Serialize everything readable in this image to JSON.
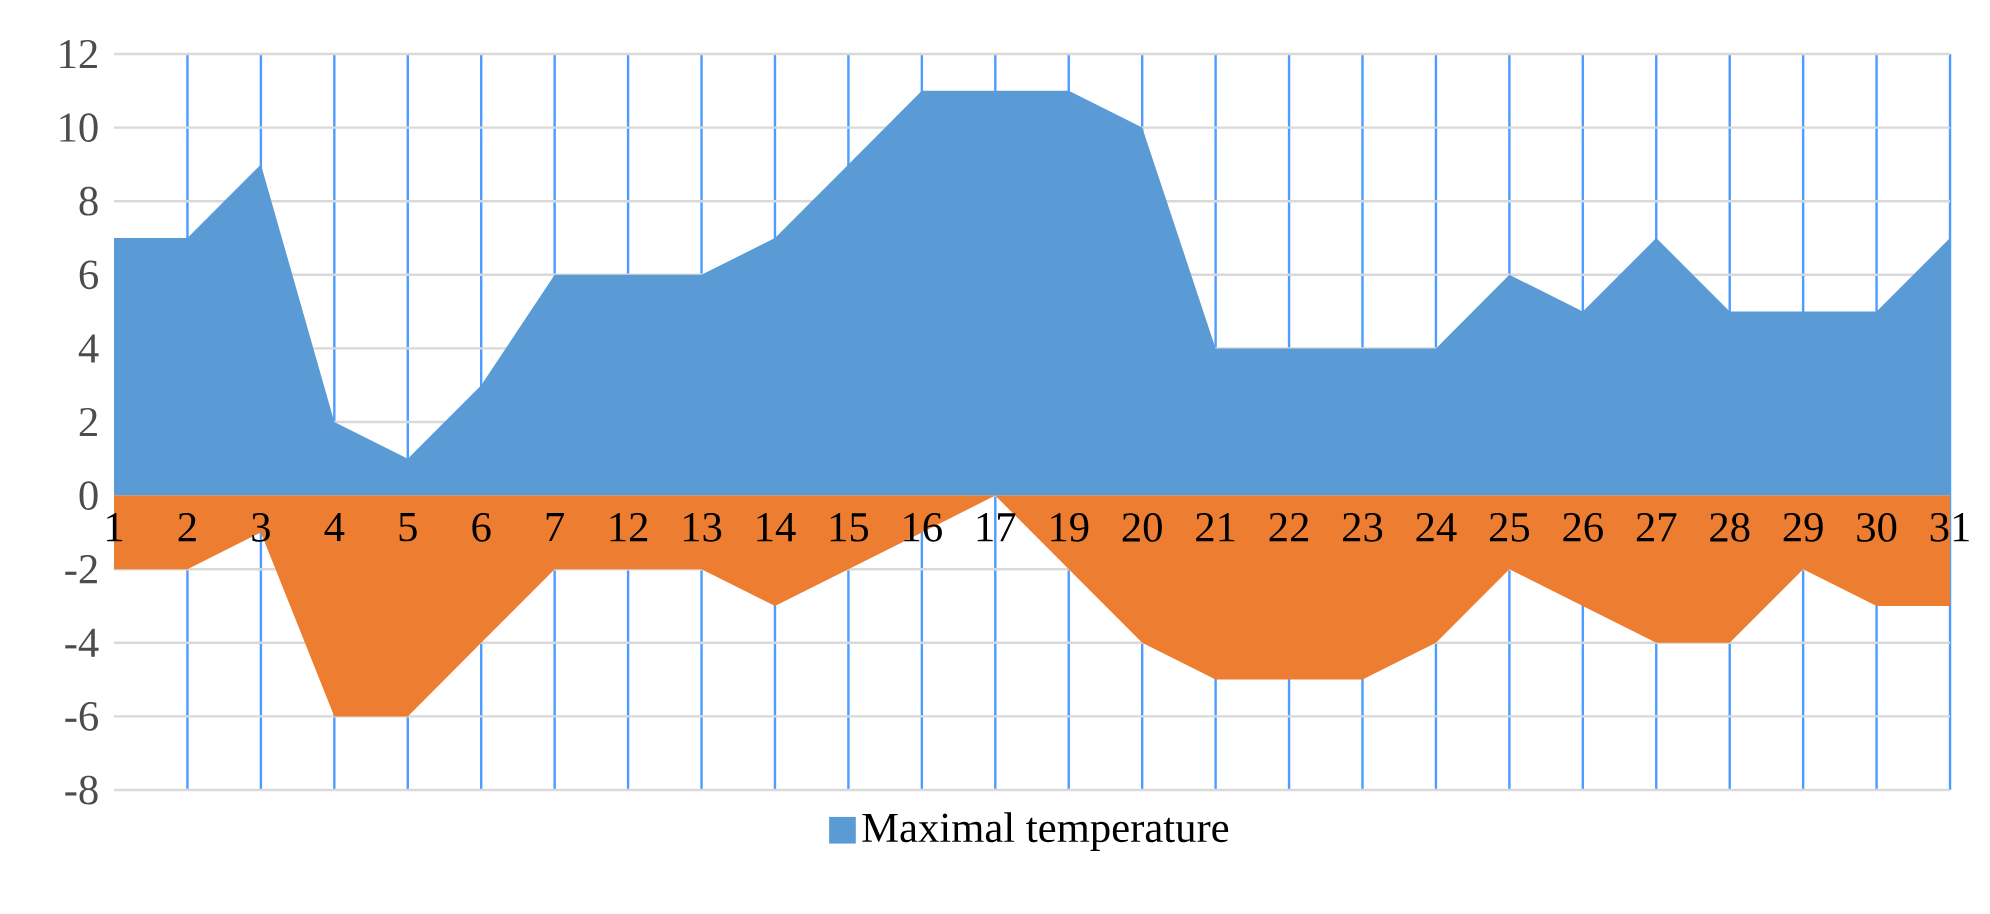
{
  "chart_data": {
    "type": "area",
    "categories": [
      "1",
      "2",
      "3",
      "4",
      "5",
      "6",
      "7",
      "12",
      "13",
      "14",
      "15",
      "16",
      "17",
      "19",
      "20",
      "21",
      "22",
      "23",
      "24",
      "25",
      "26",
      "27",
      "28",
      "29",
      "30",
      "31"
    ],
    "series": [
      {
        "name": "Maximal temperature",
        "color": "#5b9bd5",
        "values": [
          7,
          7,
          9,
          2,
          1,
          3,
          6,
          6,
          6,
          7,
          9,
          11,
          11,
          11,
          10,
          4,
          4,
          4,
          4,
          6,
          5,
          7,
          5,
          5,
          5,
          7
        ]
      },
      {
        "color": "#ed7d31",
        "values": [
          -2,
          -2,
          -1,
          -6,
          -6,
          -4,
          -2,
          -2,
          -2,
          -3,
          -2,
          -1,
          0,
          -2,
          -4,
          -5,
          -5,
          -5,
          -4,
          -2,
          -3,
          -4,
          -4,
          -2,
          -3,
          -3
        ]
      }
    ],
    "ylim": [
      -8,
      12
    ],
    "yticks": [
      -8,
      -6,
      -4,
      -2,
      0,
      2,
      4,
      6,
      8,
      10,
      12
    ],
    "grid": true,
    "legend": "bottom"
  }
}
